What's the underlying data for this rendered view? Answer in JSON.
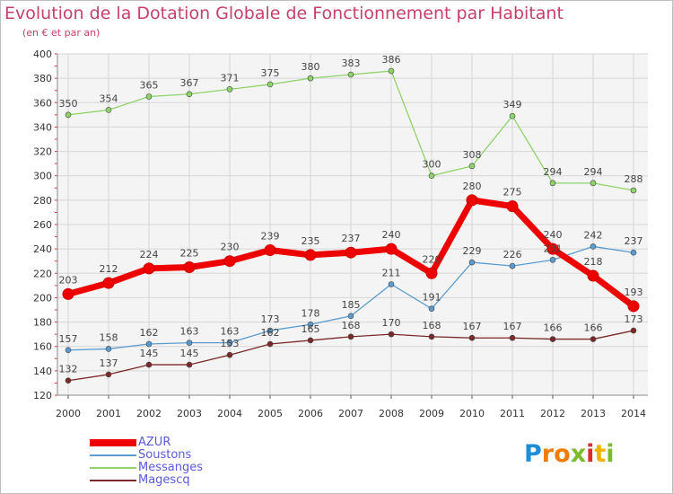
{
  "title": "Evolution de la Dotation Globale de Fonctionnement par Habitant",
  "subtitle": "(en € et par an)",
  "logo": {
    "text": "Proxiti",
    "letter_colors": [
      "#1e8fd6",
      "#f07d00",
      "#f07d00",
      "#7dbb2a",
      "#d62e2e",
      "#f0b400",
      "#7dbb2a"
    ]
  },
  "chart_data": {
    "type": "line",
    "x": [
      "2000",
      "2001",
      "2002",
      "2003",
      "2004",
      "2005",
      "2006",
      "2007",
      "2008",
      "2009",
      "2010",
      "2011",
      "2012",
      "2013",
      "2014"
    ],
    "ylim": [
      120,
      400
    ],
    "y_ticks": [
      "120",
      "140",
      "160",
      "180",
      "200",
      "220",
      "240",
      "260",
      "280",
      "300",
      "320",
      "340",
      "360",
      "380",
      "400"
    ],
    "grid": true,
    "legend_position": "bottom-left",
    "series": [
      {
        "name": "AZUR",
        "color": "#ee0000",
        "emphasized": true,
        "values": [
          203,
          212,
          224,
          225,
          230,
          239,
          235,
          237,
          240,
          220,
          280,
          275,
          240,
          218,
          193
        ],
        "labels": [
          "203",
          "212",
          "224",
          "225",
          "230",
          "239",
          "235",
          "237",
          "240",
          "220",
          "280",
          "275",
          "240",
          "218",
          "193"
        ]
      },
      {
        "name": "Soustons",
        "color": "#5b9bcf",
        "values": [
          157,
          158,
          162,
          163,
          163,
          173,
          178,
          185,
          211,
          191,
          229,
          226,
          231,
          242,
          237
        ],
        "labels": [
          "157",
          "158",
          "162",
          "163",
          "163",
          "173",
          "178",
          "185",
          "211",
          "191",
          "229",
          "226",
          "231",
          "242",
          "237"
        ]
      },
      {
        "name": "Messanges",
        "color": "#8fd36a",
        "values": [
          350,
          354,
          365,
          367,
          371,
          375,
          380,
          383,
          386,
          300,
          308,
          349,
          294,
          294,
          288
        ],
        "labels": [
          "350",
          "354",
          "365",
          "367",
          "371",
          "375",
          "380",
          "383",
          "386",
          "300",
          "308",
          "349",
          "294",
          "294",
          "288"
        ]
      },
      {
        "name": "Magescq",
        "color": "#7a2a2a",
        "values": [
          132,
          137,
          145,
          145,
          153,
          162,
          165,
          168,
          170,
          168,
          167,
          167,
          166,
          166,
          173
        ],
        "labels": [
          "132",
          "137",
          "145",
          "145",
          "153",
          "162",
          "165",
          "168",
          "170",
          "168",
          "167",
          "167",
          "166",
          "166",
          "173"
        ]
      }
    ]
  }
}
